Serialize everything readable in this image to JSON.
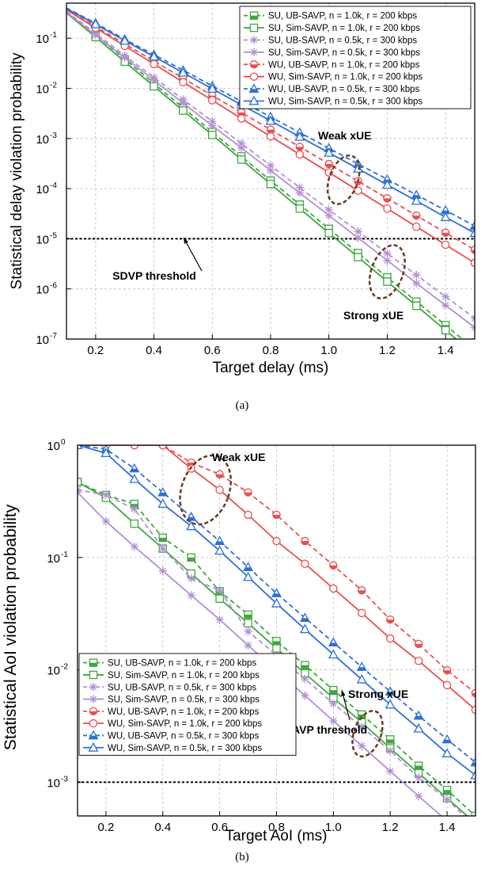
{
  "figure": {
    "colors": {
      "green": "#3fa83f",
      "purple": "#b38fd1",
      "red": "#e85050",
      "blue": "#2f6fd6",
      "annotation": "#6b3a1e",
      "grid": "#bdbdbd"
    },
    "panels": [
      {
        "caption": "(a)",
        "chart_data": {
          "type": "line",
          "title": "",
          "xlabel": "Target delay (ms)",
          "ylabel": "Statistical delay violation probability",
          "xscale": "linear",
          "yscale": "log",
          "xlim": [
            0.1,
            1.5
          ],
          "ylim": [
            1e-07,
            0.5
          ],
          "xticks": [
            0.2,
            0.4,
            0.6,
            0.8,
            1.0,
            1.2,
            1.4
          ],
          "xtick_labels": [
            "0.2",
            "0.4",
            "0.6",
            "0.8",
            "1.0",
            "1.2",
            "1.4"
          ],
          "ytick_exponents": [
            -7,
            -6,
            -5,
            -4,
            -3,
            -2,
            -1
          ],
          "ytick_base": "10",
          "grid": true,
          "legend_position": "top-right",
          "x": [
            0.1,
            0.2,
            0.3,
            0.4,
            0.5,
            0.6,
            0.7,
            0.8,
            0.9,
            1.0,
            1.1,
            1.2,
            1.3,
            1.4,
            1.5
          ],
          "series": [
            {
              "name": "SU, UB-SAVP, n = 1.0k, r = 200 kbps",
              "color": "green",
              "dash": true,
              "marker": "square-half",
              "values": [
                0.33,
                0.115,
                0.038,
                0.0125,
                0.0041,
                0.00135,
                0.00044,
                0.000145,
                4.8e-05,
                1.58e-05,
                5.2e-06,
                1.7e-06,
                5.6e-07,
                1.9e-07,
                6.2e-08
              ]
            },
            {
              "name": "SU, Sim-SAVP, n = 1.0k, r = 200 kbps",
              "color": "green",
              "dash": false,
              "marker": "square",
              "values": [
                0.32,
                0.105,
                0.034,
                0.011,
                0.0036,
                0.00118,
                0.00038,
                0.000124,
                4e-05,
                1.3e-05,
                4.3e-06,
                1.4e-06,
                4.6e-07,
                1.5e-07,
                5e-08
              ]
            },
            {
              "name": "SU, UB-SAVP, n = 0.5k, r = 300 kbps",
              "color": "purple",
              "dash": true,
              "marker": "asterisk",
              "values": [
                0.34,
                0.125,
                0.045,
                0.0165,
                0.006,
                0.0022,
                0.0008,
                0.00029,
                0.000105,
                3.8e-05,
                1.4e-05,
                5.1e-06,
                1.9e-06,
                7e-07,
                2.6e-07
              ]
            },
            {
              "name": "SU, Sim-SAVP, n = 0.5k, r = 300 kbps",
              "color": "purple",
              "dash": false,
              "marker": "asterisk",
              "values": [
                0.33,
                0.115,
                0.041,
                0.0145,
                0.0051,
                0.0018,
                0.00065,
                0.00023,
                8.2e-05,
                2.9e-05,
                1.04e-05,
                3.7e-06,
                1.3e-06,
                4.7e-07,
                1.7e-07
              ]
            },
            {
              "name": "WU, UB-SAVP, n = 1.0k, r = 200 kbps",
              "color": "red",
              "dash": true,
              "marker": "circle-half",
              "values": [
                0.38,
                0.17,
                0.077,
                0.035,
                0.016,
                0.0072,
                0.0033,
                0.0015,
                0.00068,
                0.00031,
                0.000141,
                6.4e-05,
                2.9e-05,
                1.32e-05,
                6e-06
              ]
            },
            {
              "name": "WU, Sim-SAVP, n = 1.0k, r = 200 kbps",
              "color": "red",
              "dash": false,
              "marker": "circle",
              "values": [
                0.37,
                0.16,
                0.07,
                0.0305,
                0.0133,
                0.0058,
                0.0025,
                0.0011,
                0.00048,
                0.00021,
                9.1e-05,
                4e-05,
                1.74e-05,
                7.6e-06,
                3.3e-06
              ]
            },
            {
              "name": "WU, UB-SAVP, n = 0.5k, r = 300 kbps",
              "color": "blue",
              "dash": true,
              "marker": "triangle-half",
              "values": [
                0.4,
                0.2,
                0.095,
                0.047,
                0.023,
                0.0112,
                0.0055,
                0.0027,
                0.00131,
                0.00064,
                0.00031,
                0.000153,
                7.5e-05,
                3.7e-05,
                1.8e-05
              ]
            },
            {
              "name": "WU, Sim-SAVP, n = 0.5k, r = 300 kbps",
              "color": "blue",
              "dash": false,
              "marker": "triangle",
              "values": [
                0.39,
                0.19,
                0.089,
                0.043,
                0.0205,
                0.0098,
                0.0047,
                0.00225,
                0.00108,
                0.00052,
                0.00025,
                0.000119,
                5.7e-05,
                2.7e-05,
                1.3e-05
              ]
            }
          ],
          "threshold": {
            "value": 1e-05,
            "label": "SDVP threshold"
          },
          "annotations": [
            {
              "label": "Weak xUE",
              "x": 1.05,
              "y": 0.00015
            },
            {
              "label": "Strong xUE",
              "x": 1.2,
              "y": 2.2e-06
            }
          ]
        }
      },
      {
        "caption": "(b)",
        "chart_data": {
          "type": "line",
          "title": "",
          "xlabel": "Target AoI (ms)",
          "ylabel": "Statistical AoI violation probability",
          "xscale": "linear",
          "yscale": "log",
          "xlim": [
            0.1,
            1.5
          ],
          "ylim": [
            0.0005,
            1
          ],
          "xticks": [
            0.2,
            0.4,
            0.6,
            0.8,
            1.0,
            1.2,
            1.4
          ],
          "xtick_labels": [
            "0.2",
            "0.4",
            "0.6",
            "0.8",
            "1.0",
            "1.2",
            "1.4"
          ],
          "ytick_exponents": [
            -3,
            -2,
            -1,
            0
          ],
          "ytick_base": "10",
          "grid": true,
          "legend_position": "bottom-left",
          "x": [
            0.1,
            0.2,
            0.3,
            0.4,
            0.5,
            0.6,
            0.7,
            0.8,
            0.9,
            1.0,
            1.1,
            1.2,
            1.3,
            1.4,
            1.5
          ],
          "series": [
            {
              "name": "SU, UB-SAVP, n = 1.0k, r = 200 kbps",
              "color": "green",
              "dash": true,
              "marker": "square-half",
              "values": [
                0.47,
                0.36,
                0.3,
                0.15,
                0.1,
                0.05,
                0.031,
                0.018,
                0.011,
                0.0066,
                0.004,
                0.0024,
                0.0014,
                0.00085,
                0.0005
              ]
            },
            {
              "name": "SU, Sim-SAVP, n = 1.0k, r = 200 kbps",
              "color": "green",
              "dash": false,
              "marker": "square",
              "values": [
                0.47,
                0.34,
                0.2,
                0.12,
                0.072,
                0.043,
                0.026,
                0.0155,
                0.0093,
                0.0056,
                0.0034,
                0.002,
                0.0012,
                0.00072,
                0.00043
              ]
            },
            {
              "name": "SU, UB-SAVP, n = 0.5k, r = 300 kbps",
              "color": "purple",
              "dash": true,
              "marker": "asterisk",
              "values": [
                0.4,
                0.36,
                0.27,
                0.12,
                0.065,
                0.051,
                0.022,
                0.0135,
                0.0083,
                0.005,
                0.0031,
                0.0019,
                0.0011,
                0.0007,
                0.0004
              ]
            },
            {
              "name": "SU, Sim-SAVP, n = 0.5k, r = 300 kbps",
              "color": "purple",
              "dash": false,
              "marker": "asterisk",
              "values": [
                0.38,
                0.21,
                0.125,
                0.076,
                0.046,
                0.028,
                0.0165,
                0.0098,
                0.0059,
                0.0035,
                0.0021,
                0.00125,
                0.00075,
                0.00045,
                0.00027
              ]
            },
            {
              "name": "WU, UB-SAVP, n = 1.0k, r = 200 kbps",
              "color": "red",
              "dash": true,
              "marker": "circle-half",
              "values": [
                1.0,
                1.0,
                1.0,
                1.0,
                0.7,
                0.55,
                0.38,
                0.24,
                0.14,
                0.085,
                0.051,
                0.028,
                0.017,
                0.0099,
                0.0062
              ]
            },
            {
              "name": "WU, Sim-SAVP, n = 1.0k, r = 200 kbps",
              "color": "red",
              "dash": false,
              "marker": "circle",
              "values": [
                1.0,
                1.0,
                1.0,
                1.0,
                0.62,
                0.4,
                0.24,
                0.14,
                0.088,
                0.053,
                0.032,
                0.019,
                0.012,
                0.0073,
                0.0044
              ]
            },
            {
              "name": "WU, UB-SAVP, n = 0.5k, r = 300 kbps",
              "color": "blue",
              "dash": true,
              "marker": "triangle-half",
              "values": [
                1.0,
                0.92,
                0.62,
                0.38,
                0.23,
                0.14,
                0.082,
                0.048,
                0.029,
                0.0175,
                0.0106,
                0.0064,
                0.0039,
                0.0024,
                0.0015
              ]
            },
            {
              "name": "WU, Sim-SAVP, n = 0.5k, r = 300 kbps",
              "color": "blue",
              "dash": false,
              "marker": "triangle",
              "values": [
                1.0,
                0.85,
                0.5,
                0.3,
                0.19,
                0.115,
                0.067,
                0.039,
                0.023,
                0.0137,
                0.0082,
                0.0049,
                0.003,
                0.0018,
                0.00115
              ]
            }
          ],
          "threshold": {
            "value": 0.001,
            "label": "SAVP threshold"
          },
          "annotations": [
            {
              "label": "Weak xUE",
              "x": 0.55,
              "y": 0.4
            },
            {
              "label": "Strong xUE",
              "x": 1.12,
              "y": 0.0027
            }
          ]
        }
      }
    ]
  }
}
